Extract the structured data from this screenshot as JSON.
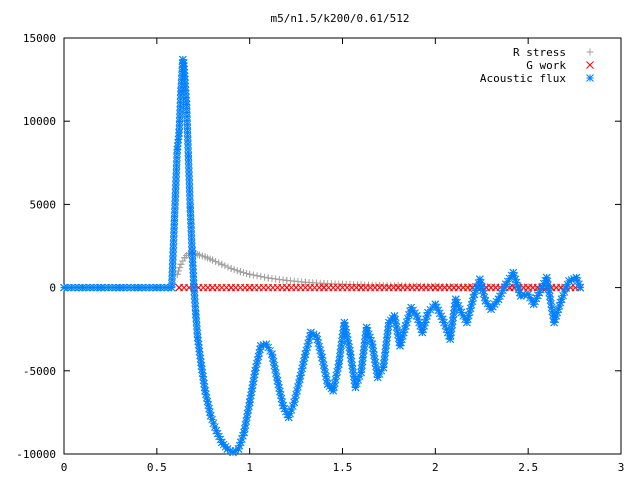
{
  "chart_data": {
    "type": "scatter",
    "title": "m5/n1.5/k200/0.61/512",
    "xlabel": "",
    "ylabel": "",
    "xlim": [
      0,
      3
    ],
    "ylim": [
      -10000,
      15000
    ],
    "x_ticks": [
      0,
      0.5,
      1,
      1.5,
      2,
      2.5,
      3
    ],
    "x_tick_labels": [
      "0",
      "0.5",
      "1",
      "1.5",
      "2",
      "2.5",
      "3"
    ],
    "y_ticks": [
      -10000,
      -5000,
      0,
      5000,
      10000,
      15000
    ],
    "y_tick_labels": [
      "-10000",
      "-5000",
      "0",
      "5000",
      "10000",
      "15000"
    ],
    "grid": false,
    "legend_position": "top-right",
    "series": [
      {
        "name": "R stress",
        "color": "#a0a0a0",
        "marker": "plus",
        "x": [
          0.61,
          0.63,
          0.65,
          0.67,
          0.69,
          0.71,
          0.73,
          0.76,
          0.8,
          0.85,
          0.9,
          0.95,
          1.0,
          1.1,
          1.2,
          1.3,
          1.4,
          1.5,
          1.6,
          1.7,
          1.8,
          1.9,
          2.0,
          2.2,
          2.4,
          2.6,
          2.78
        ],
        "values": [
          800,
          1400,
          1800,
          2050,
          2100,
          2050,
          1950,
          1850,
          1650,
          1400,
          1150,
          950,
          800,
          580,
          430,
          320,
          250,
          200,
          160,
          130,
          110,
          90,
          80,
          60,
          45,
          35,
          30
        ]
      },
      {
        "name": "G work",
        "color": "#ff0000",
        "marker": "cross",
        "x": [
          0.62,
          0.7,
          0.8,
          0.9,
          1.0,
          1.2,
          1.4,
          1.6,
          1.8,
          2.0,
          2.2,
          2.4,
          2.6,
          2.78
        ],
        "values": [
          0,
          0,
          0,
          0,
          0,
          0,
          0,
          0,
          0,
          0,
          0,
          0,
          0,
          0
        ]
      },
      {
        "name": "Acoustic flux",
        "color": "#0080ff",
        "marker": "star",
        "x": [
          0.0,
          0.1,
          0.2,
          0.3,
          0.4,
          0.5,
          0.58,
          0.61,
          0.62,
          0.63,
          0.64,
          0.645,
          0.65,
          0.66,
          0.67,
          0.68,
          0.69,
          0.7,
          0.71,
          0.72,
          0.74,
          0.76,
          0.79,
          0.82,
          0.85,
          0.88,
          0.91,
          0.94,
          0.97,
          1.0,
          1.03,
          1.06,
          1.09,
          1.12,
          1.15,
          1.18,
          1.21,
          1.24,
          1.27,
          1.3,
          1.33,
          1.36,
          1.39,
          1.42,
          1.45,
          1.48,
          1.51,
          1.54,
          1.57,
          1.6,
          1.63,
          1.66,
          1.69,
          1.72,
          1.75,
          1.78,
          1.81,
          1.84,
          1.87,
          1.9,
          1.93,
          1.96,
          2.0,
          2.04,
          2.08,
          2.11,
          2.14,
          2.17,
          2.21,
          2.24,
          2.27,
          2.3,
          2.34,
          2.38,
          2.42,
          2.46,
          2.5,
          2.53,
          2.56,
          2.6,
          2.64,
          2.68,
          2.72,
          2.76,
          2.78
        ],
        "values": [
          0,
          0,
          0,
          0,
          0,
          0,
          0,
          8300,
          9300,
          11800,
          13700,
          13500,
          12700,
          11000,
          7900,
          4800,
          2200,
          0,
          -1600,
          -3000,
          -4700,
          -6200,
          -7700,
          -8600,
          -9300,
          -9700,
          -9900,
          -9700,
          -8700,
          -6900,
          -5000,
          -3500,
          -3400,
          -4000,
          -5600,
          -7100,
          -7800,
          -6900,
          -5500,
          -4000,
          -2700,
          -2900,
          -4200,
          -5800,
          -6200,
          -4600,
          -2100,
          -3800,
          -6000,
          -5100,
          -2400,
          -3400,
          -5400,
          -4800,
          -2100,
          -1700,
          -3500,
          -2300,
          -1200,
          -1700,
          -2700,
          -1500,
          -1000,
          -1900,
          -3100,
          -700,
          -1500,
          -2100,
          -400,
          500,
          -800,
          -1300,
          -700,
          200,
          900,
          -500,
          -400,
          -1000,
          -300,
          600,
          -2100,
          -700,
          400,
          600,
          0
        ]
      }
    ]
  }
}
